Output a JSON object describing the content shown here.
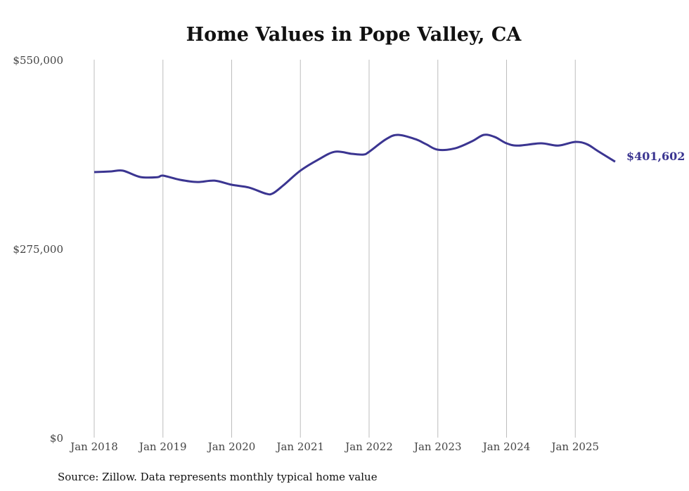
{
  "chart_data": {
    "type": "line",
    "title": "Home Values in Pope Valley, CA",
    "xlabel": "",
    "ylabel": "",
    "ylim": [
      0,
      550000
    ],
    "y_ticks": [
      {
        "value": 0,
        "label": "$0"
      },
      {
        "value": 275000,
        "label": "$275,000"
      },
      {
        "value": 550000,
        "label": "$550,000"
      }
    ],
    "x_ticks": [
      {
        "value": 2018,
        "label": "Jan 2018"
      },
      {
        "value": 2019,
        "label": "Jan 2019"
      },
      {
        "value": 2020,
        "label": "Jan 2020"
      },
      {
        "value": 2021,
        "label": "Jan 2021"
      },
      {
        "value": 2022,
        "label": "Jan 2022"
      },
      {
        "value": 2023,
        "label": "Jan 2023"
      },
      {
        "value": 2024,
        "label": "Jan 2024"
      },
      {
        "value": 2025,
        "label": "Jan 2025"
      }
    ],
    "grid": "vertical",
    "series": [
      {
        "name": "Typical home value",
        "color": "#3b3591",
        "x": [
          2018.0,
          2018.25,
          2018.42,
          2018.67,
          2018.92,
          2019.0,
          2019.25,
          2019.5,
          2019.75,
          2020.0,
          2020.25,
          2020.5,
          2020.6,
          2020.75,
          2021.0,
          2021.25,
          2021.5,
          2021.75,
          2021.92,
          2022.0,
          2022.25,
          2022.42,
          2022.67,
          2022.83,
          2023.0,
          2023.25,
          2023.5,
          2023.67,
          2023.83,
          2024.0,
          2024.17,
          2024.5,
          2024.75,
          2025.0,
          2025.17,
          2025.33,
          2025.58
        ],
        "values": [
          386400,
          387500,
          388500,
          379300,
          379000,
          381300,
          375200,
          372000,
          374000,
          368000,
          364000,
          355000,
          355500,
          367000,
          388500,
          404000,
          416000,
          413000,
          412000,
          416000,
          434500,
          440600,
          434500,
          427000,
          419000,
          421000,
          431400,
          440600,
          437500,
          428300,
          425000,
          428300,
          425000,
          430400,
          427000,
          417000,
          401602
        ]
      }
    ],
    "end_label": "$401,602"
  },
  "source": "Source: Zillow. Data represents monthly typical home value"
}
